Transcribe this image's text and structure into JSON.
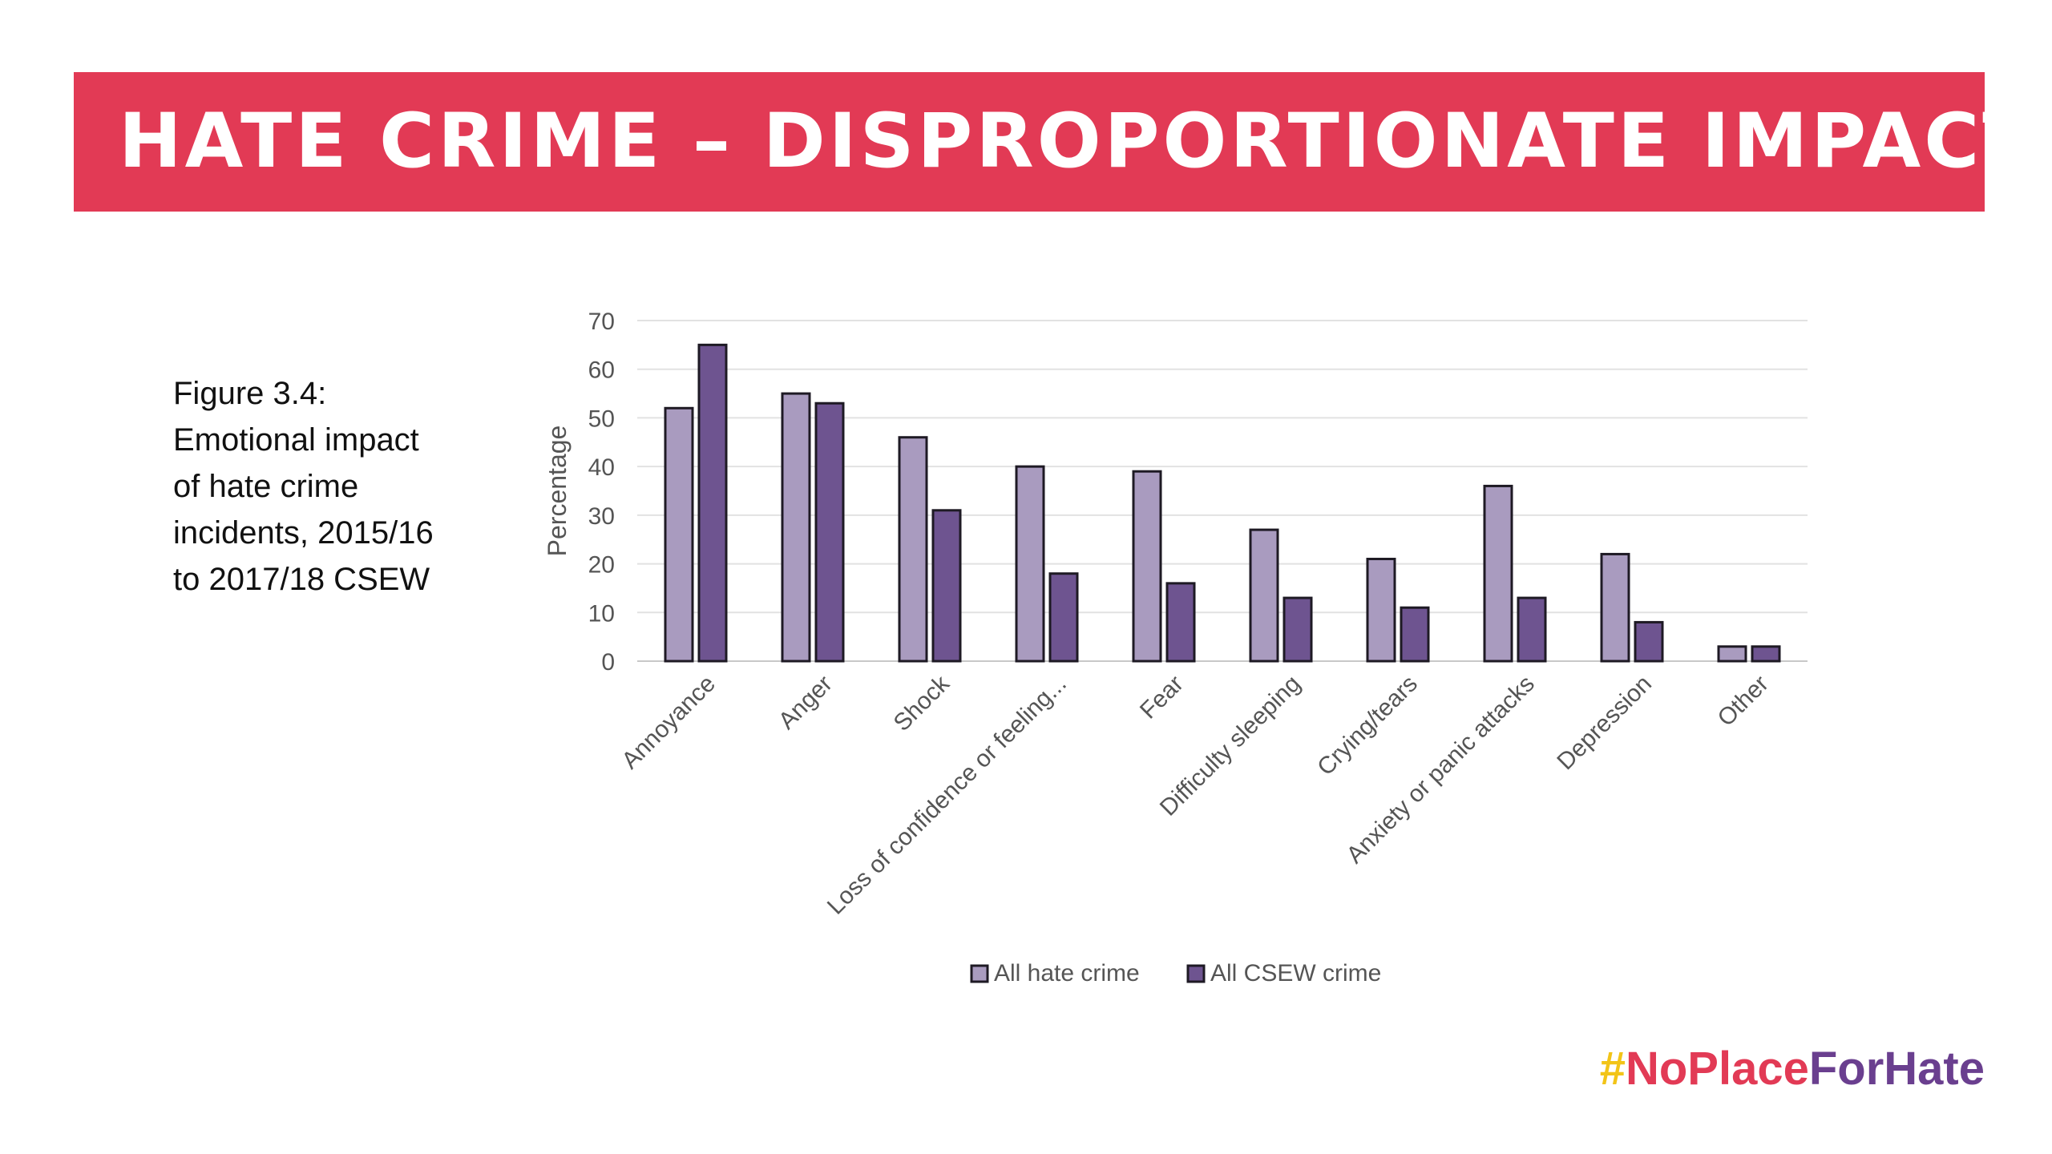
{
  "banner": {
    "title": "HATE CRIME – DISPROPORTIONATE IMPACT"
  },
  "caption": {
    "lines": [
      "Figure 3.4:",
      "Emotional impact",
      "of hate crime",
      "incidents, 2015/16",
      "to 2017/18 CSEW"
    ]
  },
  "hashtag": {
    "hash": "#",
    "part1": "NoPlace",
    "part2": "ForHate"
  },
  "colors": {
    "banner": "#e23a55",
    "series_light": "#a99bbf",
    "series_dark": "#6e5490",
    "hash_yellow": "#f2c418",
    "tag_red": "#e23a55",
    "tag_purple": "#6a3f8f"
  },
  "chart_data": {
    "type": "bar",
    "title": "",
    "xlabel": "",
    "ylabel": "Percentage",
    "ylim": [
      0,
      70
    ],
    "yticks": [
      0,
      10,
      20,
      30,
      40,
      50,
      60,
      70
    ],
    "grid": true,
    "legend_position": "bottom",
    "categories": [
      "Annoyance",
      "Anger",
      "Shock",
      "Loss of confidence or feeling...",
      "Fear",
      "Difficulty sleeping",
      "Crying/tears",
      "Anxiety or panic attacks",
      "Depression",
      "Other"
    ],
    "series": [
      {
        "name": "All hate crime",
        "values": [
          52,
          55,
          46,
          40,
          39,
          27,
          21,
          36,
          22,
          3
        ]
      },
      {
        "name": "All CSEW crime",
        "values": [
          65,
          53,
          31,
          18,
          16,
          13,
          11,
          13,
          8,
          3
        ]
      }
    ]
  }
}
